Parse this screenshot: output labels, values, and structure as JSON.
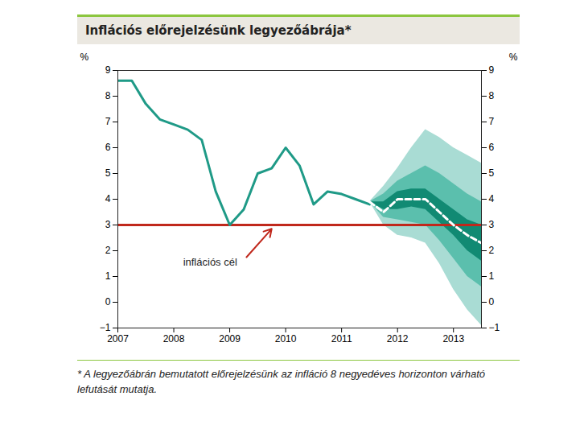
{
  "chart_data": {
    "type": "line",
    "title": "Inflációs előrejelzésünk legyezőábrája*",
    "caption": "* A legyezőábrán bemutatott előrejelzésünk az infláció 8 negyedéves horizonton várható lefutását mutatja.",
    "y_label": "%",
    "xlim": [
      2007,
      2013.5
    ],
    "xticks": [
      2007,
      2008,
      2009,
      2010,
      2011,
      2012,
      2013
    ],
    "ylim": [
      -1,
      9
    ],
    "yticks": [
      -1,
      0,
      1,
      2,
      3,
      4,
      5,
      6,
      7,
      8,
      9
    ],
    "grid": false,
    "series": [
      {
        "color": "#1f9a87",
        "line_style": "solid",
        "x": [
          2007,
          2007.25,
          2007.5,
          2007.75,
          2008,
          2008.25,
          2008.5,
          2008.75,
          2009,
          2009.25,
          2009.5,
          2009.75,
          2010,
          2010.25,
          2010.5,
          2010.75,
          2011,
          2011.25,
          2011.5
        ],
        "values": [
          8.6,
          8.6,
          7.7,
          7.1,
          6.9,
          6.7,
          6.3,
          4.3,
          3.0,
          3.6,
          5.0,
          5.2,
          6.0,
          5.3,
          3.8,
          4.3,
          4.2,
          4.0,
          3.8
        ]
      },
      {
        "color": "#ffffff",
        "line_style": "dashed",
        "x": [
          2011.5,
          2011.75,
          2012,
          2012.25,
          2012.5,
          2012.75,
          2013,
          2013.25,
          2013.5
        ],
        "values": [
          3.9,
          3.5,
          4.0,
          4.0,
          4.0,
          3.5,
          3.0,
          2.6,
          2.3
        ]
      }
    ],
    "fan": {
      "x": [
        2011.5,
        2011.75,
        2012,
        2012.25,
        2012.5,
        2012.75,
        2013,
        2013.25,
        2013.5
      ],
      "bands": [
        {
          "color": "#a9dcd4",
          "lower": [
            3.9,
            3.0,
            2.6,
            2.5,
            2.3,
            1.5,
            0.5,
            -0.3,
            -0.9
          ],
          "upper": [
            3.9,
            4.5,
            5.2,
            6.0,
            6.7,
            6.4,
            6.0,
            5.7,
            5.4
          ]
        },
        {
          "color": "#5bbfad",
          "lower": [
            3.9,
            3.3,
            3.2,
            3.1,
            3.0,
            2.4,
            1.7,
            1.0,
            0.6
          ],
          "upper": [
            3.9,
            4.2,
            4.7,
            5.0,
            5.3,
            5.0,
            4.6,
            4.2,
            3.9
          ]
        },
        {
          "color": "#118a73",
          "lower": [
            3.9,
            3.6,
            3.6,
            3.7,
            3.6,
            3.1,
            2.6,
            2.0,
            1.6
          ],
          "upper": [
            3.9,
            3.9,
            4.3,
            4.4,
            4.4,
            4.0,
            3.6,
            3.2,
            3.0
          ]
        }
      ]
    },
    "target_line": {
      "value": 3,
      "color": "#c0281c"
    },
    "annotation": {
      "text": "inflációs cél",
      "x": 2008.65,
      "y": 1.55,
      "arrow_from": [
        2009.3,
        1.75
      ],
      "arrow_to": [
        2009.75,
        2.85
      ],
      "color": "#c0281c"
    }
  }
}
